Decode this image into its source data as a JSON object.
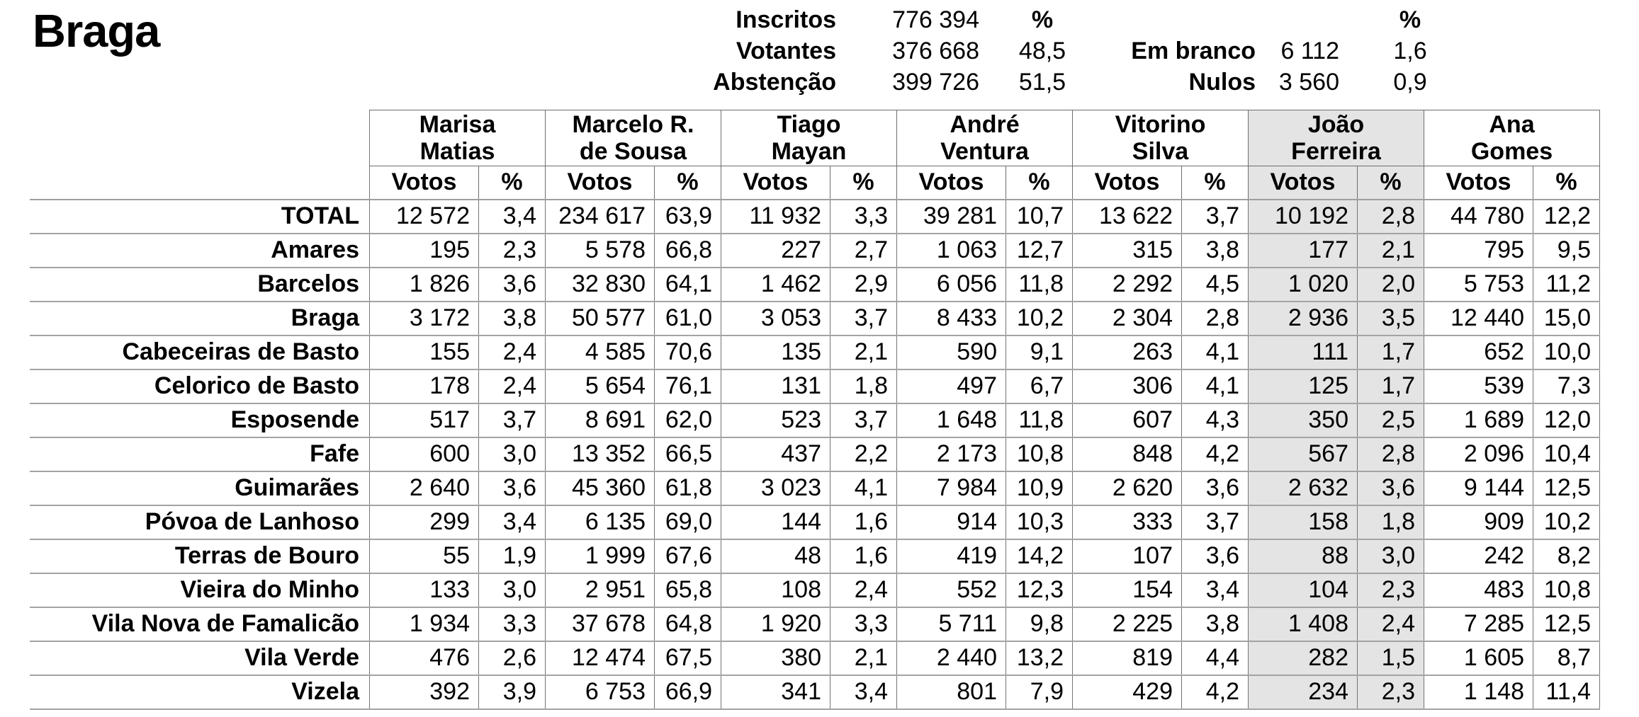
{
  "title": "Braga",
  "summary": {
    "pct_header": "%",
    "pct_header_right": "%",
    "inscritos_label": "Inscritos",
    "inscritos_value": "776 394",
    "votantes_label": "Votantes",
    "votantes_value": "376 668",
    "votantes_pct": "48,5",
    "abstencao_label": "Abstenção",
    "abstencao_value": "399 726",
    "abstencao_pct": "51,5",
    "em_branco_label": "Em branco",
    "em_branco_value": "6 112",
    "em_branco_pct": "1,6",
    "nulos_label": "Nulos",
    "nulos_value": "3 560",
    "nulos_pct": "0,9"
  },
  "table": {
    "votes_header": "Votos",
    "pct_header": "%",
    "highlight_color": "#e4e4e4",
    "highlighted_candidate_index": 5,
    "candidates": [
      "Marisa\nMatias",
      "Marcelo R.\nde Sousa",
      "Tiago\nMayan",
      "André\nVentura",
      "Vitorino\nSilva",
      "João\nFerreira",
      "Ana\nGomes"
    ],
    "rows": [
      {
        "label": "TOTAL",
        "cells": [
          "12 572",
          "3,4",
          "234 617",
          "63,9",
          "11 932",
          "3,3",
          "39 281",
          "10,7",
          "13 622",
          "3,7",
          "10 192",
          "2,8",
          "44 780",
          "12,2"
        ]
      },
      {
        "label": "Amares",
        "cells": [
          "195",
          "2,3",
          "5 578",
          "66,8",
          "227",
          "2,7",
          "1 063",
          "12,7",
          "315",
          "3,8",
          "177",
          "2,1",
          "795",
          "9,5"
        ]
      },
      {
        "label": "Barcelos",
        "cells": [
          "1 826",
          "3,6",
          "32 830",
          "64,1",
          "1 462",
          "2,9",
          "6 056",
          "11,8",
          "2 292",
          "4,5",
          "1 020",
          "2,0",
          "5 753",
          "11,2"
        ]
      },
      {
        "label": "Braga",
        "cells": [
          "3 172",
          "3,8",
          "50 577",
          "61,0",
          "3 053",
          "3,7",
          "8 433",
          "10,2",
          "2 304",
          "2,8",
          "2 936",
          "3,5",
          "12 440",
          "15,0"
        ]
      },
      {
        "label": "Cabeceiras de Basto",
        "cells": [
          "155",
          "2,4",
          "4 585",
          "70,6",
          "135",
          "2,1",
          "590",
          "9,1",
          "263",
          "4,1",
          "111",
          "1,7",
          "652",
          "10,0"
        ]
      },
      {
        "label": "Celorico de Basto",
        "cells": [
          "178",
          "2,4",
          "5 654",
          "76,1",
          "131",
          "1,8",
          "497",
          "6,7",
          "306",
          "4,1",
          "125",
          "1,7",
          "539",
          "7,3"
        ]
      },
      {
        "label": "Esposende",
        "cells": [
          "517",
          "3,7",
          "8 691",
          "62,0",
          "523",
          "3,7",
          "1 648",
          "11,8",
          "607",
          "4,3",
          "350",
          "2,5",
          "1 689",
          "12,0"
        ]
      },
      {
        "label": "Fafe",
        "cells": [
          "600",
          "3,0",
          "13 352",
          "66,5",
          "437",
          "2,2",
          "2 173",
          "10,8",
          "848",
          "4,2",
          "567",
          "2,8",
          "2 096",
          "10,4"
        ]
      },
      {
        "label": "Guimarães",
        "cells": [
          "2 640",
          "3,6",
          "45 360",
          "61,8",
          "3 023",
          "4,1",
          "7 984",
          "10,9",
          "2 620",
          "3,6",
          "2 632",
          "3,6",
          "9 144",
          "12,5"
        ]
      },
      {
        "label": "Póvoa de Lanhoso",
        "cells": [
          "299",
          "3,4",
          "6 135",
          "69,0",
          "144",
          "1,6",
          "914",
          "10,3",
          "333",
          "3,7",
          "158",
          "1,8",
          "909",
          "10,2"
        ]
      },
      {
        "label": "Terras de Bouro",
        "cells": [
          "55",
          "1,9",
          "1 999",
          "67,6",
          "48",
          "1,6",
          "419",
          "14,2",
          "107",
          "3,6",
          "88",
          "3,0",
          "242",
          "8,2"
        ]
      },
      {
        "label": "Vieira do Minho",
        "cells": [
          "133",
          "3,0",
          "2 951",
          "65,8",
          "108",
          "2,4",
          "552",
          "12,3",
          "154",
          "3,4",
          "104",
          "2,3",
          "483",
          "10,8"
        ]
      },
      {
        "label": "Vila Nova de Famalicão",
        "cells": [
          "1 934",
          "3,3",
          "37 678",
          "64,8",
          "1 920",
          "3,3",
          "5 711",
          "9,8",
          "2 225",
          "3,8",
          "1 408",
          "2,4",
          "7 285",
          "12,5"
        ]
      },
      {
        "label": "Vila Verde",
        "cells": [
          "476",
          "2,6",
          "12 474",
          "67,5",
          "380",
          "2,1",
          "2 440",
          "13,2",
          "819",
          "4,4",
          "282",
          "1,5",
          "1 605",
          "8,7"
        ]
      },
      {
        "label": "Vizela",
        "cells": [
          "392",
          "3,9",
          "6 753",
          "66,9",
          "341",
          "3,4",
          "801",
          "7,9",
          "429",
          "4,2",
          "234",
          "2,3",
          "1 148",
          "11,4"
        ]
      }
    ]
  }
}
